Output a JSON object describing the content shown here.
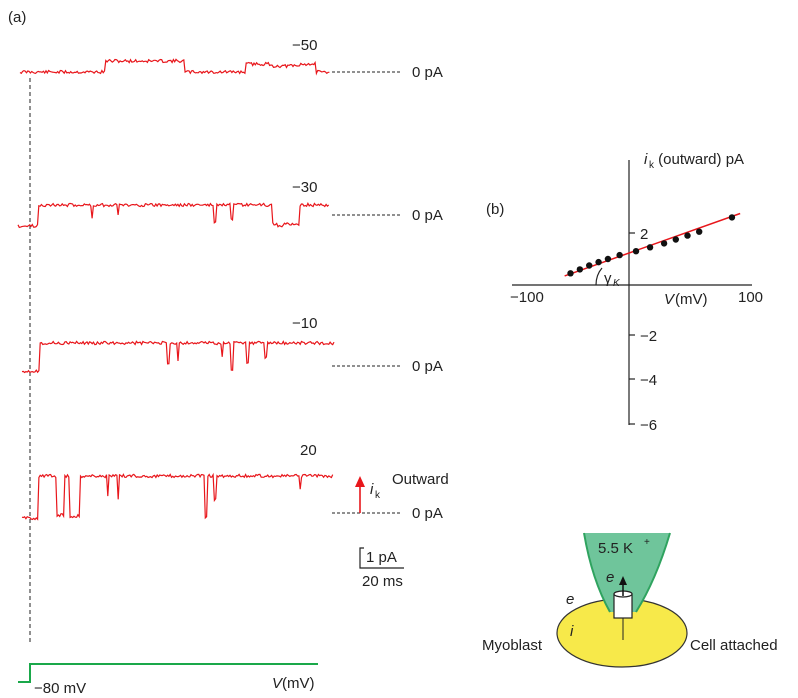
{
  "panel_a": {
    "label": "(a)",
    "zero_label": "0 pA",
    "traces": [
      {
        "voltage": "−50"
      },
      {
        "voltage": "−30"
      },
      {
        "voltage": "−10"
      },
      {
        "voltage": "20"
      }
    ],
    "current_symbol": "i",
    "current_subscript": "k",
    "outward_label": "Outward",
    "scale_current": "1 pA",
    "scale_time": "20 ms",
    "holding_potential": "−80 mV",
    "protocol_v": "V",
    "protocol_unit": "(mV)",
    "colors": {
      "trace": "#e8161b",
      "protocol": "#1aa84a",
      "arrow": "#e8161b"
    }
  },
  "panel_b": {
    "label": "(b)",
    "y_axis_label_symbol": "i",
    "y_axis_label_sub": "k",
    "y_axis_label_rest": " (outward) pA",
    "x_axis_label_symbol": "V",
    "x_axis_label_rest": "(mV)",
    "slope_label_symbol": "γ",
    "slope_label_sub": "K",
    "x_tick_labels": [
      "−100",
      "100"
    ],
    "y_tick_labels": [
      "2",
      "−2",
      "−4",
      "−6"
    ],
    "colors": {
      "fit_line": "#e8161b",
      "points": "#111111"
    }
  },
  "chart_data": {
    "type": "scatter",
    "xlabel": "V(mV)",
    "ylabel": "i k (outward) pA",
    "xlim": [
      -100,
      100
    ],
    "ylim": [
      -6,
      4
    ],
    "x_ticks": [
      -100,
      100
    ],
    "y_ticks": [
      2,
      -2,
      -4,
      -6
    ],
    "points": [
      [
        -50,
        0.45
      ],
      [
        -42,
        0.6
      ],
      [
        -34,
        0.75
      ],
      [
        -26,
        0.88
      ],
      [
        -18,
        1.0
      ],
      [
        -8,
        1.15
      ],
      [
        6,
        1.3
      ],
      [
        18,
        1.45
      ],
      [
        30,
        1.6
      ],
      [
        40,
        1.75
      ],
      [
        50,
        1.9
      ],
      [
        60,
        2.05
      ],
      [
        88,
        2.6
      ]
    ],
    "fit_line": {
      "x": [
        -55,
        95
      ],
      "y": [
        0.35,
        2.75
      ]
    },
    "grid": false
  },
  "inset": {
    "pipette_solution": "5.5 K",
    "pipette_superscript": "+",
    "outside_label": "e",
    "inside_label": "i",
    "cell_label": "Myoblast",
    "config_label": "Cell attached",
    "colors": {
      "pipette": "#6fc59b",
      "pipette_edge": "#2fa35f",
      "cell": "#f7e94a",
      "cell_edge": "#333333"
    }
  }
}
